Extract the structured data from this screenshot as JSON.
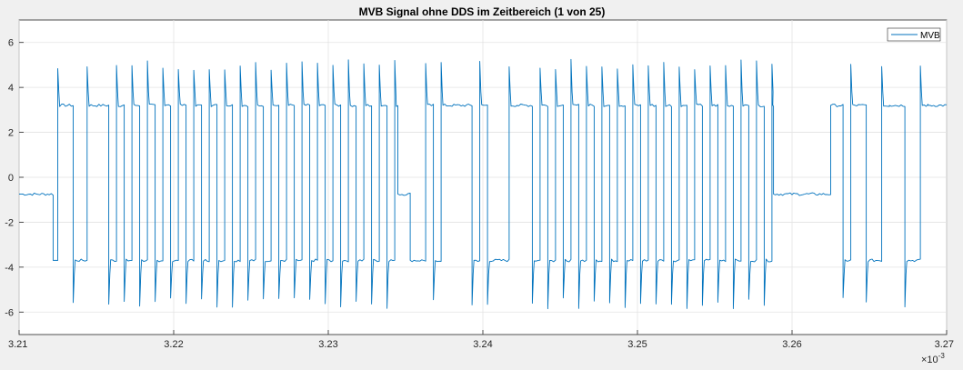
{
  "chart_data": {
    "type": "line",
    "title": "MVB Signal ohne DDS im Zeitbereich (1 von 25)",
    "xlabel": "",
    "ylabel": "",
    "xlim": [
      3.21,
      3.27
    ],
    "ylim": [
      -7,
      7
    ],
    "x_tick_labels": [
      "3.21",
      "3.22",
      "3.23",
      "3.24",
      "3.25",
      "3.26",
      "3.27"
    ],
    "y_tick_labels": [
      "-6",
      "-4",
      "-2",
      "0",
      "2",
      "4",
      "6"
    ],
    "x_exponent_label": "×10",
    "x_exponent_power": "-3",
    "grid": true,
    "legend_position": "top-right",
    "series": [
      {
        "name": "MVB",
        "color": "#0072bd",
        "levels": {
          "idle": -0.75,
          "high": 3.2,
          "low": -3.7,
          "overshoot_high": 5.0,
          "overshoot_low": -5.6
        },
        "segments": [
          {
            "start": 3.21,
            "end": 3.2122,
            "state": "idle"
          },
          {
            "start": 3.2122,
            "end": 3.2125,
            "state": "low"
          },
          {
            "start": 3.2125,
            "end": 3.2135,
            "state": "high"
          },
          {
            "start": 3.2135,
            "end": 3.2144,
            "state": "low"
          },
          {
            "start": 3.2144,
            "end": 3.2158,
            "state": "high"
          },
          {
            "start": 3.2158,
            "end": 3.2345,
            "state": "toggle",
            "half_period": 0.0005
          },
          {
            "start": 3.2345,
            "end": 3.2353,
            "state": "idle"
          },
          {
            "start": 3.2353,
            "end": 3.2363,
            "state": "low"
          },
          {
            "start": 3.2363,
            "end": 3.2373,
            "state": "toggle",
            "half_period": 0.0005
          },
          {
            "start": 3.2373,
            "end": 3.2393,
            "state": "high"
          },
          {
            "start": 3.2393,
            "end": 3.2407,
            "state": "toggle",
            "half_period": 0.0005
          },
          {
            "start": 3.2407,
            "end": 3.2417,
            "state": "low"
          },
          {
            "start": 3.2417,
            "end": 3.2422,
            "state": "toggle",
            "half_period": 0.0005
          },
          {
            "start": 3.2422,
            "end": 3.2432,
            "state": "high"
          },
          {
            "start": 3.2432,
            "end": 3.2588,
            "state": "toggle",
            "half_period": 0.0005
          },
          {
            "start": 3.2588,
            "end": 3.2625,
            "state": "idle"
          },
          {
            "start": 3.2625,
            "end": 3.2633,
            "state": "high"
          },
          {
            "start": 3.2633,
            "end": 3.2638,
            "state": "toggle",
            "half_period": 0.0005
          },
          {
            "start": 3.2638,
            "end": 3.2648,
            "state": "high"
          },
          {
            "start": 3.2648,
            "end": 3.2658,
            "state": "low"
          },
          {
            "start": 3.2658,
            "end": 3.2663,
            "state": "toggle",
            "half_period": 0.0005
          },
          {
            "start": 3.2663,
            "end": 3.2673,
            "state": "high"
          },
          {
            "start": 3.2673,
            "end": 3.2683,
            "state": "low"
          },
          {
            "start": 3.2683,
            "end": 3.2688,
            "state": "toggle",
            "half_period": 0.0005
          },
          {
            "start": 3.2688,
            "end": 3.27,
            "state": "high"
          }
        ]
      }
    ]
  }
}
